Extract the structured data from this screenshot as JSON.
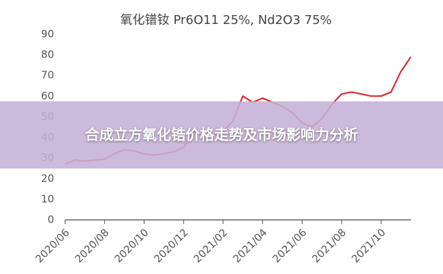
{
  "chart_data": {
    "type": "line",
    "title": "氧化镨钕 Pr6O11 25%, Nd2O3 75%",
    "categories": [
      "2020/06",
      null,
      null,
      null,
      "2020/08",
      null,
      null,
      null,
      "2020/10",
      null,
      null,
      null,
      "2020/12",
      null,
      null,
      null,
      "2021/02",
      null,
      null,
      null,
      "2021/04",
      null,
      null,
      null,
      "2021/06",
      null,
      null,
      null,
      "2021/08",
      null,
      null,
      null,
      "2021/10",
      null,
      null,
      null
    ],
    "series": [
      {
        "color": "#e0242a",
        "values": [
          27,
          29,
          28.5,
          29,
          29.5,
          32,
          34,
          33.5,
          32,
          31.5,
          32,
          33,
          35,
          43,
          40,
          41,
          43,
          48,
          60,
          57,
          59,
          57,
          55,
          52,
          47,
          45,
          49,
          56,
          61,
          62,
          61,
          60,
          60,
          62,
          72,
          79
        ]
      }
    ],
    "ylim": [
      0,
      90
    ],
    "yticks": [
      0,
      10,
      20,
      30,
      40,
      50,
      60,
      70,
      80,
      90
    ],
    "grid": false
  },
  "banner": {
    "title": "合成立方氧化锆价格走势及市场影响力分析"
  }
}
